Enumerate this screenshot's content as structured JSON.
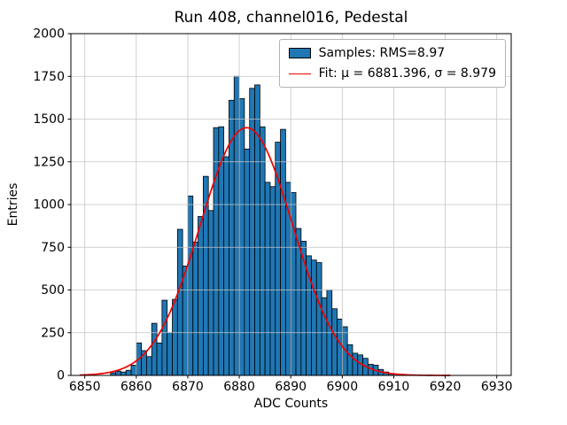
{
  "figure": {
    "title": "Run 408, channel016, Pedestal",
    "xlabel": "ADC Counts",
    "ylabel": "Entries"
  },
  "legend": {
    "position": "upper right",
    "samples_label": "Samples: RMS=8.97",
    "fit_label": "Fit: μ = 6881.396, σ = 8.979"
  },
  "chart_data": {
    "type": "bar",
    "subtype": "histogram-with-gaussian-fit",
    "title": "Run 408, channel016, Pedestal",
    "xlabel": "ADC Counts",
    "ylabel": "Entries",
    "xlim": [
      6847.3,
      6932.8
    ],
    "ylim": [
      0,
      2000
    ],
    "x_ticks": [
      6850,
      6860,
      6870,
      6880,
      6890,
      6900,
      6910,
      6920,
      6930
    ],
    "y_ticks": [
      0,
      250,
      500,
      750,
      1000,
      1250,
      1500,
      1750,
      2000
    ],
    "grid": true,
    "bar_width": 1,
    "bins": [
      6855,
      6856,
      6857,
      6858,
      6859,
      6860,
      6861,
      6862,
      6863,
      6864,
      6865,
      6866,
      6867,
      6868,
      6869,
      6870,
      6871,
      6872,
      6873,
      6874,
      6875,
      6876,
      6877,
      6878,
      6879,
      6880,
      6881,
      6882,
      6883,
      6884,
      6885,
      6886,
      6887,
      6888,
      6889,
      6890,
      6891,
      6892,
      6893,
      6894,
      6895,
      6896,
      6897,
      6898,
      6899,
      6900,
      6901,
      6902,
      6903,
      6904,
      6905,
      6906,
      6907,
      6908,
      6909
    ],
    "values": [
      15,
      25,
      20,
      30,
      60,
      190,
      145,
      110,
      305,
      190,
      440,
      250,
      445,
      855,
      640,
      1050,
      780,
      930,
      1165,
      965,
      1450,
      1455,
      1280,
      1610,
      1750,
      1620,
      1325,
      1680,
      1700,
      1455,
      1130,
      1105,
      1365,
      1440,
      1130,
      1070,
      860,
      785,
      700,
      675,
      660,
      455,
      500,
      390,
      330,
      285,
      180,
      130,
      120,
      100,
      65,
      60,
      35,
      20,
      10
    ],
    "samples_rms": 8.97,
    "fit": {
      "mu": 6881.396,
      "sigma": 8.979,
      "amplitude": 1450,
      "range": [
        6849,
        6921
      ]
    },
    "colors": {
      "bar_fill": "#1f77b4",
      "bar_edge": "#000000",
      "fit_line": "#ee0000",
      "grid": "#c4c4c4",
      "axes": "#000000"
    }
  }
}
